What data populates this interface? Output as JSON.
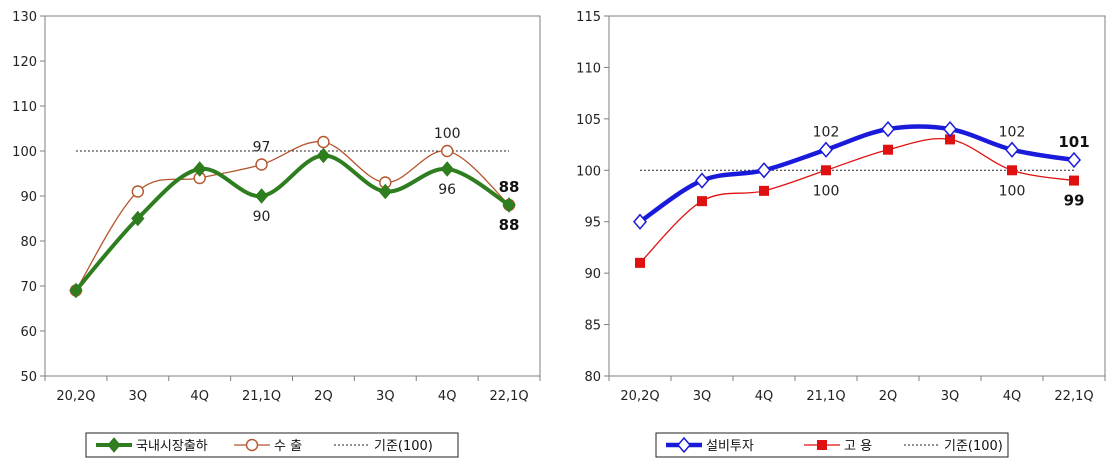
{
  "chart_data": [
    {
      "type": "line",
      "categories": [
        "20,2Q",
        "3Q",
        "4Q",
        "21,1Q",
        "2Q",
        "3Q",
        "4Q",
        "22,1Q"
      ],
      "ylim": [
        50,
        130
      ],
      "yticks": [
        50,
        60,
        70,
        80,
        90,
        100,
        110,
        120,
        130
      ],
      "reference": {
        "name": "기준(100)",
        "value": 100
      },
      "series": [
        {
          "name": "국내시장출하",
          "values": [
            69,
            85,
            96,
            90,
            99,
            91,
            96,
            88
          ],
          "color": "#2e7d1e",
          "marker": "diamond"
        },
        {
          "name": "수 출",
          "values": [
            69,
            91,
            94,
            97,
            102,
            93,
            100,
            88
          ],
          "color": "#b5562e",
          "marker": "open-circle"
        }
      ],
      "annotations": [
        {
          "series": 1,
          "index": 3,
          "text": "97",
          "pos": "above",
          "bold": false
        },
        {
          "series": 1,
          "index": 6,
          "text": "100",
          "pos": "above",
          "bold": false
        },
        {
          "series": 1,
          "index": 7,
          "text": "88",
          "pos": "above",
          "bold": true
        },
        {
          "series": 0,
          "index": 3,
          "text": "90",
          "pos": "below",
          "bold": false
        },
        {
          "series": 0,
          "index": 6,
          "text": "96",
          "pos": "below",
          "bold": false
        },
        {
          "series": 0,
          "index": 7,
          "text": "88",
          "pos": "below",
          "bold": true
        }
      ]
    },
    {
      "type": "line",
      "categories": [
        "20,2Q",
        "3Q",
        "4Q",
        "21,1Q",
        "2Q",
        "3Q",
        "4Q",
        "22,1Q"
      ],
      "ylim": [
        80,
        115
      ],
      "yticks": [
        80,
        85,
        90,
        95,
        100,
        105,
        110,
        115
      ],
      "reference": {
        "name": "기준(100)",
        "value": 100
      },
      "series": [
        {
          "name": "설비투자",
          "values": [
            95,
            99,
            100,
            102,
            104,
            104,
            102,
            101
          ],
          "color": "#1a1adb",
          "marker": "open-diamond"
        },
        {
          "name": "고 용",
          "values": [
            91,
            97,
            98,
            100,
            102,
            103,
            100,
            99
          ],
          "color": "#e01010",
          "marker": "square"
        }
      ],
      "annotations": [
        {
          "series": 0,
          "index": 3,
          "text": "102",
          "pos": "above",
          "bold": false
        },
        {
          "series": 0,
          "index": 6,
          "text": "102",
          "pos": "above",
          "bold": false
        },
        {
          "series": 0,
          "index": 7,
          "text": "101",
          "pos": "above",
          "bold": true
        },
        {
          "series": 1,
          "index": 3,
          "text": "100",
          "pos": "below",
          "bold": false
        },
        {
          "series": 1,
          "index": 6,
          "text": "100",
          "pos": "below",
          "bold": false
        },
        {
          "series": 1,
          "index": 7,
          "text": "99",
          "pos": "below",
          "bold": true
        }
      ]
    }
  ]
}
